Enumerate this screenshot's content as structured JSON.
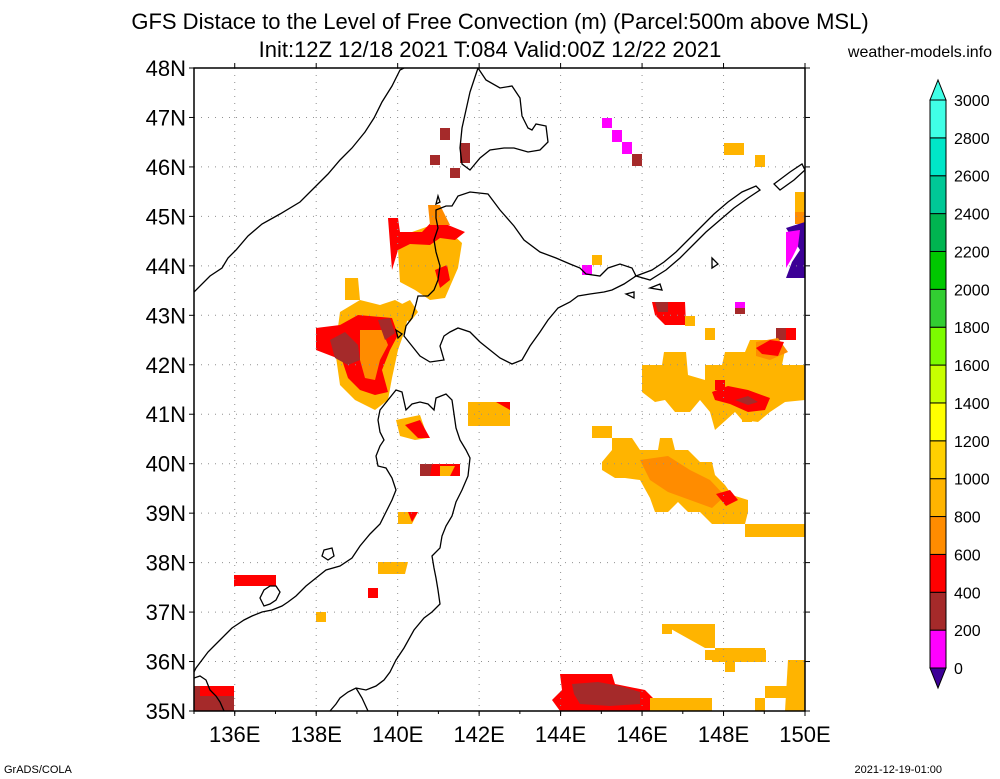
{
  "title_line1": "GFS Distace to the Level of Free Convection (m) (Parcel:500m above MSL)",
  "title_line2": "Init:12Z 12/18 2021 T:084 Valid:00Z 12/22 2021",
  "credit": "weather-models.info",
  "footer_left": "GrADS/COLA",
  "footer_right": "2021-12-19-01:00",
  "map": {
    "lon_range": [
      135,
      150
    ],
    "lat_range": [
      35,
      48
    ],
    "lat_ticks": [
      "35N",
      "36N",
      "37N",
      "38N",
      "39N",
      "40N",
      "41N",
      "42N",
      "43N",
      "44N",
      "45N",
      "46N",
      "47N",
      "48N"
    ],
    "lon_ticks": [
      "136E",
      "138E",
      "140E",
      "142E",
      "144E",
      "146E",
      "148E",
      "150E"
    ]
  },
  "colorbar": {
    "labels": [
      "0",
      "200",
      "400",
      "600",
      "800",
      "1000",
      "1200",
      "1400",
      "1600",
      "1800",
      "2000",
      "2200",
      "2400",
      "2600",
      "2800",
      "3000"
    ],
    "colors": [
      "#3c0096",
      "#ff00ff",
      "#a52a2a",
      "#ff0000",
      "#ff8c00",
      "#ffb400",
      "#ffd000",
      "#ffff00",
      "#c8ff00",
      "#7cfc00",
      "#32cd32",
      "#00c800",
      "#00b450",
      "#00c896",
      "#00e6c8",
      "#40ffe6"
    ]
  },
  "chart_data": {
    "type": "heatmap",
    "title": "GFS Distace to the Level of Free Convection (m) (Parcel:500m above MSL)",
    "subtitle": "Init:12Z 12/18 2021 T:084 Valid:00Z 12/22 2021",
    "xlim": [
      135,
      150
    ],
    "ylim": [
      35,
      48
    ],
    "units": "m",
    "levels": [
      0,
      200,
      400,
      600,
      800,
      1000,
      1200,
      1400,
      1600,
      1800,
      2000,
      2200,
      2400,
      2600,
      2800,
      3000
    ],
    "regions": [
      {
        "lon": [
          139.4,
          140.6
        ],
        "lat": [
          43.8,
          44.9
        ],
        "value": 500
      },
      {
        "lon": [
          140.2,
          141.3
        ],
        "lat": [
          44.2,
          45.2
        ],
        "value": 700
      },
      {
        "lon": [
          138.0,
          140.0
        ],
        "lat": [
          41.6,
          43.0
        ],
        "value": 650
      },
      {
        "lon": [
          138.6,
          139.8
        ],
        "lat": [
          41.0,
          42.6
        ],
        "value": 500
      },
      {
        "lon": [
          138.5,
          139.5
        ],
        "lat": [
          42.0,
          43.2
        ],
        "value": 800
      },
      {
        "lon": [
          142.3,
          143.2
        ],
        "lat": [
          40.8,
          41.2
        ],
        "value": 900
      },
      {
        "lon": [
          144.8,
          147.7
        ],
        "lat": [
          38.7,
          40.7
        ],
        "value": 950
      },
      {
        "lon": [
          146.0,
          150.0
        ],
        "lat": [
          40.7,
          42.0
        ],
        "value": 950
      },
      {
        "lon": [
          147.6,
          149.2
        ],
        "lat": [
          41.0,
          41.5
        ],
        "value": 450
      },
      {
        "lon": [
          147.5,
          150.0
        ],
        "lat": [
          38.6,
          38.9
        ],
        "value": 900
      },
      {
        "lon": [
          146.2,
          147.5
        ],
        "lat": [
          35.9,
          36.8
        ],
        "value": 950
      },
      {
        "lon": [
          144.0,
          145.8
        ],
        "lat": [
          35.0,
          35.8
        ],
        "value": 500
      },
      {
        "lon": [
          144.5,
          148.0
        ],
        "lat": [
          35.0,
          35.3
        ],
        "value": 900
      },
      {
        "lon": [
          149.0,
          150.0
        ],
        "lat": [
          35.0,
          36.0
        ],
        "value": 1000
      },
      {
        "lon": [
          149.8,
          150.0
        ],
        "lat": [
          43.8,
          45.0
        ],
        "value": 100
      },
      {
        "lon": [
          135.0,
          136.0
        ],
        "lat": [
          35.0,
          35.5
        ],
        "value": 450
      },
      {
        "lon": [
          136.0,
          137.0
        ],
        "lat": [
          37.5,
          37.7
        ],
        "value": 550
      },
      {
        "lon": [
          145.0,
          145.8
        ],
        "lat": [
          46.2,
          46.9
        ],
        "value": 150
      }
    ]
  }
}
